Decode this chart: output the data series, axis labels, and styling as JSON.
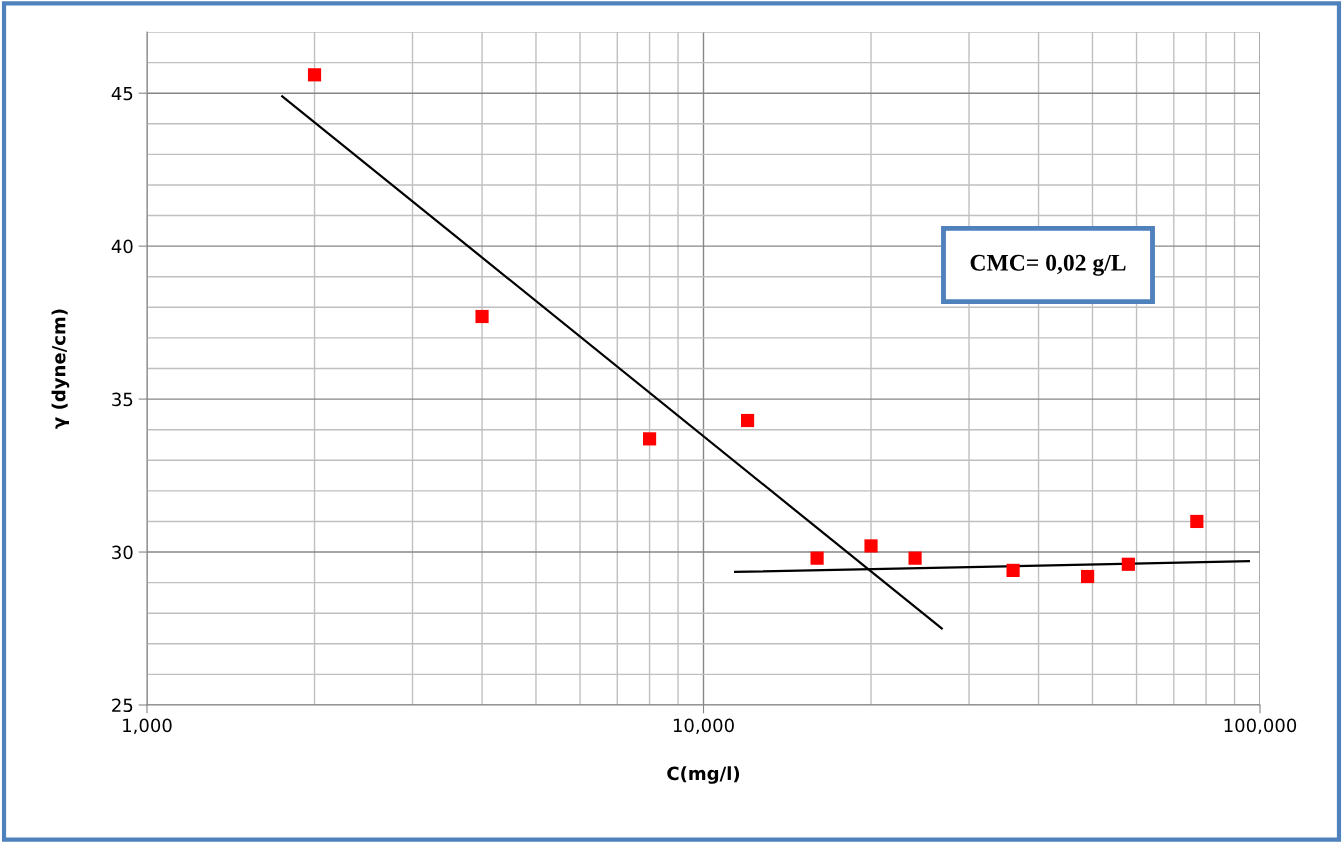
{
  "chart_data": {
    "type": "scatter",
    "xlabel": "C(mg/l)",
    "ylabel": "γ (dyne/cm)",
    "log": "x",
    "grid": true,
    "marker": "square",
    "xlim": [
      1000,
      100000
    ],
    "xticks": [
      {
        "value": 1000,
        "label": "1,000"
      },
      {
        "value": 10000,
        "label": "10,000"
      },
      {
        "value": 100000,
        "label": "100,000"
      }
    ],
    "ylim": [
      25,
      47
    ],
    "yticks": [
      25,
      30,
      35,
      40,
      45
    ],
    "annotations": [
      "CMC= 0,02 g/L"
    ],
    "series": [
      {
        "color": "#ff0000",
        "x": [
          2000,
          4000,
          8000,
          12000,
          16000,
          20000,
          24000,
          36000,
          49000,
          58000,
          77000
        ],
        "values": [
          45.6,
          37.7,
          33.7,
          34.3,
          29.8,
          30.2,
          29.8,
          29.4,
          29.2,
          29.6,
          31.0
        ]
      },
      {
        "type": "line",
        "color": "#000000",
        "marker": "none",
        "x": [
          1750,
          26800
        ],
        "values": [
          44.9,
          27.5
        ]
      },
      {
        "type": "line",
        "color": "#000000",
        "marker": "none",
        "x": [
          11400,
          95500
        ],
        "values": [
          29.35,
          29.7
        ]
      }
    ]
  }
}
